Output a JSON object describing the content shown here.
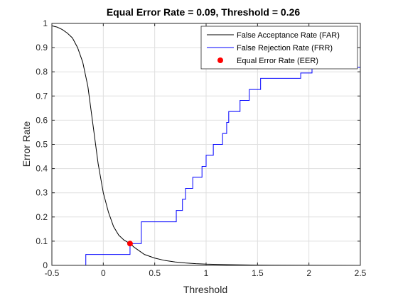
{
  "chart_data": {
    "type": "line",
    "title": "Equal Error Rate = 0.09, Threshold = 0.26",
    "xlabel": "Threshold",
    "ylabel": "Error Rate",
    "xlim": [
      -0.5,
      2.5
    ],
    "ylim": [
      0,
      1
    ],
    "xticks": [
      "-0.5",
      "0",
      "0.5",
      "1",
      "1.5",
      "2",
      "2.5"
    ],
    "yticks": [
      "0",
      "0.1",
      "0.2",
      "0.3",
      "0.4",
      "0.5",
      "0.6",
      "0.7",
      "0.8",
      "0.9",
      "1"
    ],
    "grid": true,
    "legend_position": "top-right",
    "series": [
      {
        "name": "False Acceptance Rate (FAR)",
        "color": "#000000",
        "style": "line",
        "x": [
          -0.5,
          -0.45,
          -0.4,
          -0.35,
          -0.3,
          -0.25,
          -0.2,
          -0.15,
          -0.1,
          -0.05,
          0,
          0.05,
          0.1,
          0.15,
          0.2,
          0.26,
          0.3,
          0.35,
          0.4,
          0.5,
          0.6,
          0.7,
          0.8,
          0.9,
          1.0,
          1.2,
          1.5,
          2.0,
          2.5
        ],
        "y": [
          0.99,
          0.985,
          0.975,
          0.96,
          0.94,
          0.9,
          0.84,
          0.74,
          0.58,
          0.42,
          0.3,
          0.22,
          0.16,
          0.125,
          0.105,
          0.09,
          0.075,
          0.06,
          0.045,
          0.03,
          0.02,
          0.014,
          0.01,
          0.007,
          0.005,
          0.003,
          0.001,
          0.0003,
          0.0001
        ]
      },
      {
        "name": "False Rejection Rate (FRR)",
        "color": "#0000ff",
        "style": "step",
        "x": [
          -0.5,
          -0.17,
          0.26,
          0.37,
          0.71,
          0.77,
          0.8,
          0.87,
          0.96,
          1.0,
          1.07,
          1.16,
          1.2,
          1.22,
          1.33,
          1.42,
          1.53,
          1.92,
          2.03,
          2.5
        ],
        "y": [
          0.0,
          0.045,
          0.09,
          0.18,
          0.227,
          0.273,
          0.318,
          0.364,
          0.409,
          0.455,
          0.5,
          0.545,
          0.591,
          0.636,
          0.682,
          0.727,
          0.773,
          0.795,
          0.818,
          0.818
        ]
      },
      {
        "name": "Equal Error Rate (EER)",
        "color": "#ff0000",
        "style": "marker",
        "x": [
          0.26
        ],
        "y": [
          0.09
        ]
      }
    ]
  }
}
